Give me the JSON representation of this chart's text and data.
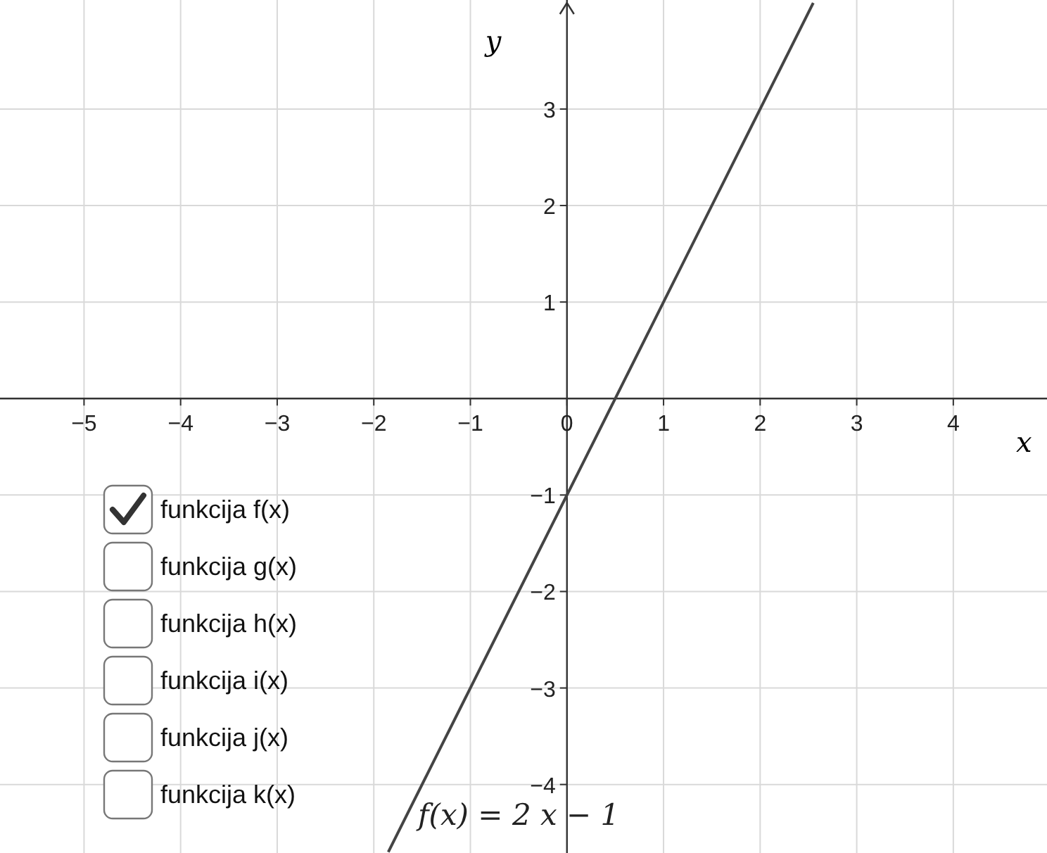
{
  "chart_data": {
    "type": "line",
    "xlabel": "x",
    "ylabel": "y",
    "xlim": [
      -5.87,
      4.97
    ],
    "ylim": [
      -4.71,
      4.13
    ],
    "xticks": [
      {
        "value": -5,
        "label": "−5"
      },
      {
        "value": -4,
        "label": "−4"
      },
      {
        "value": -3,
        "label": "−3"
      },
      {
        "value": -2,
        "label": "−2"
      },
      {
        "value": -1,
        "label": "−1"
      },
      0,
      1,
      2,
      3,
      4
    ],
    "yticks": [
      {
        "value": -4,
        "label": "−4"
      },
      {
        "value": -3,
        "label": "−3"
      },
      {
        "value": -2,
        "label": "−2"
      },
      {
        "value": -1,
        "label": "−1"
      },
      1,
      2,
      3
    ],
    "grid": true,
    "marker": "none",
    "line_style": "solid",
    "series": [
      {
        "color": "#444444",
        "x": [
          -1.85,
          2.55
        ],
        "values": [
          -4.7,
          4.1
        ]
      }
    ],
    "annotations": [
      "funkcija f(x)",
      "funkcija g(x)",
      "funkcija h(x)",
      "funkcija i(x)",
      "funkcija j(x)",
      "funkcija k(x)",
      "f(x) = 2 x − 1"
    ]
  }
}
